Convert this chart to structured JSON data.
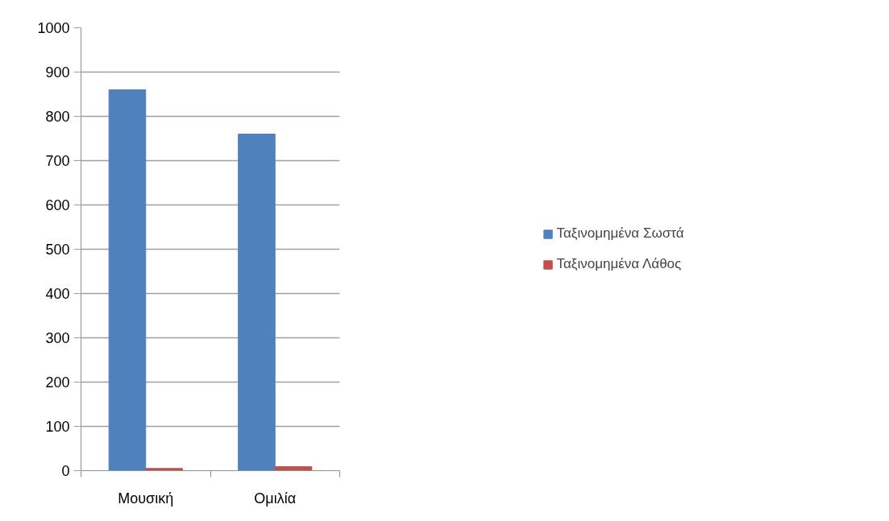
{
  "chart_data": {
    "type": "bar",
    "categories": [
      "Μουσική",
      "Ομιλία"
    ],
    "series": [
      {
        "name": "Ταξινομημένα Σωστά",
        "color": "#4f81bd",
        "values": [
          860,
          760
        ]
      },
      {
        "name": "Ταξινομημένα Λάθος",
        "color": "#c0504d",
        "values": [
          5,
          9
        ]
      }
    ],
    "ylim": [
      0,
      1000
    ],
    "yticks": [
      0,
      100,
      200,
      300,
      400,
      500,
      600,
      700,
      800,
      900,
      1000
    ],
    "grid": "y",
    "legend": "right"
  }
}
